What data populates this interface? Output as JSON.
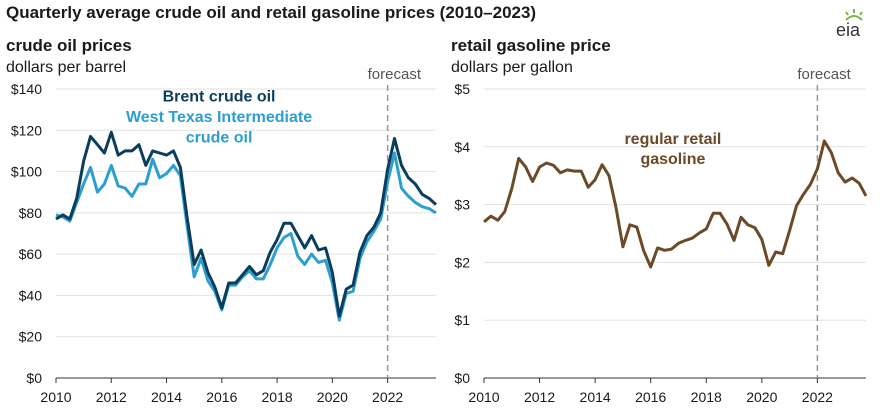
{
  "title": "Quarterly average crude oil and retail gasoline prices (2010–2023)",
  "logo": {
    "text": "eia",
    "icon": "eia-sun-icon"
  },
  "chart_data": [
    {
      "type": "line",
      "title": "crude oil prices",
      "subtitle": "dollars per barrel",
      "forecast_label": "forecast",
      "forecast_start": 2022.0,
      "xlim": [
        2010,
        2023.75
      ],
      "ylim": [
        0,
        140
      ],
      "x_ticks": [
        2010,
        2012,
        2014,
        2016,
        2018,
        2020,
        2022
      ],
      "x_tick_labels": [
        "2010",
        "2012",
        "2014",
        "2016",
        "2018",
        "2020",
        "2022"
      ],
      "y_ticks": [
        0,
        20,
        40,
        60,
        80,
        100,
        120,
        140
      ],
      "y_tick_labels": [
        "$0",
        "$20",
        "$40",
        "$60",
        "$80",
        "$100",
        "$120",
        "$140"
      ],
      "x": [
        2010.0,
        2010.25,
        2010.5,
        2010.75,
        2011.0,
        2011.25,
        2011.5,
        2011.75,
        2012.0,
        2012.25,
        2012.5,
        2012.75,
        2013.0,
        2013.25,
        2013.5,
        2013.75,
        2014.0,
        2014.25,
        2014.5,
        2014.75,
        2015.0,
        2015.25,
        2015.5,
        2015.75,
        2016.0,
        2016.25,
        2016.5,
        2016.75,
        2017.0,
        2017.25,
        2017.5,
        2017.75,
        2018.0,
        2018.25,
        2018.5,
        2018.75,
        2019.0,
        2019.25,
        2019.5,
        2019.75,
        2020.0,
        2020.25,
        2020.5,
        2020.75,
        2021.0,
        2021.25,
        2021.5,
        2021.75,
        2022.0,
        2022.25,
        2022.5,
        2022.75,
        2023.0,
        2023.25,
        2023.5,
        2023.75
      ],
      "series": [
        {
          "name": "Brent crude oil",
          "color": "#0b3d5c",
          "values": [
            77,
            79,
            77,
            87,
            105,
            117,
            113,
            109,
            119,
            108,
            110,
            110,
            113,
            103,
            110,
            109,
            108,
            110,
            102,
            77,
            55,
            62,
            51,
            44,
            34,
            46,
            46,
            50,
            54,
            50,
            52,
            61,
            67,
            75,
            75,
            69,
            63,
            69,
            62,
            63,
            51,
            30,
            43,
            45,
            61,
            69,
            73,
            80,
            101,
            116,
            103,
            97,
            94,
            89,
            87,
            84
          ]
        },
        {
          "name": "West Texas Intermediate crude oil",
          "color": "#2d9fcf",
          "values": [
            79,
            78,
            76,
            85,
            94,
            102,
            90,
            94,
            103,
            93,
            92,
            88,
            94,
            94,
            106,
            97,
            99,
            103,
            98,
            73,
            49,
            58,
            47,
            42,
            33,
            45,
            45,
            49,
            52,
            48,
            48,
            55,
            63,
            68,
            70,
            59,
            55,
            60,
            56,
            57,
            46,
            28,
            41,
            42,
            58,
            66,
            71,
            77,
            95,
            109,
            92,
            88,
            85,
            83,
            82,
            80
          ]
        }
      ],
      "annotations": [
        {
          "text": "Brent crude oil",
          "color": "#0b3d5c",
          "x": 2015.9,
          "y": 134
        },
        {
          "text": "West Texas Intermediate",
          "color": "#2d9fcf",
          "x": 2015.9,
          "y": 124
        },
        {
          "text": "crude oil",
          "color": "#2d9fcf",
          "x": 2015.9,
          "y": 114
        }
      ]
    },
    {
      "type": "line",
      "title": "retail gasoline price",
      "subtitle": "dollars per gallon",
      "forecast_label": "forecast",
      "forecast_start": 2022.0,
      "xlim": [
        2010,
        2023.75
      ],
      "ylim": [
        0,
        5
      ],
      "x_ticks": [
        2010,
        2012,
        2014,
        2016,
        2018,
        2020,
        2022
      ],
      "x_tick_labels": [
        "2010",
        "2012",
        "2014",
        "2016",
        "2018",
        "2020",
        "2022"
      ],
      "y_ticks": [
        0,
        1,
        2,
        3,
        4,
        5
      ],
      "y_tick_labels": [
        "$0",
        "$1",
        "$2",
        "$3",
        "$4",
        "$5"
      ],
      "x": [
        2010.0,
        2010.25,
        2010.5,
        2010.75,
        2011.0,
        2011.25,
        2011.5,
        2011.75,
        2012.0,
        2012.25,
        2012.5,
        2012.75,
        2013.0,
        2013.25,
        2013.5,
        2013.75,
        2014.0,
        2014.25,
        2014.5,
        2014.75,
        2015.0,
        2015.25,
        2015.5,
        2015.75,
        2016.0,
        2016.25,
        2016.5,
        2016.75,
        2017.0,
        2017.25,
        2017.5,
        2017.75,
        2018.0,
        2018.25,
        2018.5,
        2018.75,
        2019.0,
        2019.25,
        2019.5,
        2019.75,
        2020.0,
        2020.25,
        2020.5,
        2020.75,
        2021.0,
        2021.25,
        2021.5,
        2021.75,
        2022.0,
        2022.25,
        2022.5,
        2022.75,
        2023.0,
        2023.25,
        2023.5,
        2023.75
      ],
      "series": [
        {
          "name": "regular retail gasoline",
          "color": "#6b4a28",
          "values": [
            2.7,
            2.8,
            2.73,
            2.88,
            3.28,
            3.8,
            3.65,
            3.4,
            3.65,
            3.72,
            3.68,
            3.55,
            3.6,
            3.58,
            3.58,
            3.3,
            3.43,
            3.69,
            3.5,
            2.95,
            2.27,
            2.65,
            2.61,
            2.2,
            1.92,
            2.25,
            2.21,
            2.23,
            2.33,
            2.38,
            2.42,
            2.51,
            2.58,
            2.85,
            2.85,
            2.66,
            2.38,
            2.78,
            2.65,
            2.6,
            2.4,
            1.95,
            2.18,
            2.15,
            2.55,
            2.98,
            3.18,
            3.35,
            3.62,
            4.1,
            3.9,
            3.55,
            3.39,
            3.46,
            3.37,
            3.15
          ]
        }
      ],
      "annotations": [
        {
          "text": "regular retail",
          "color": "#6b4a28",
          "x": 2016.8,
          "y": 4.05
        },
        {
          "text": "gasoline",
          "color": "#6b4a28",
          "x": 2016.8,
          "y": 3.7
        }
      ]
    }
  ]
}
